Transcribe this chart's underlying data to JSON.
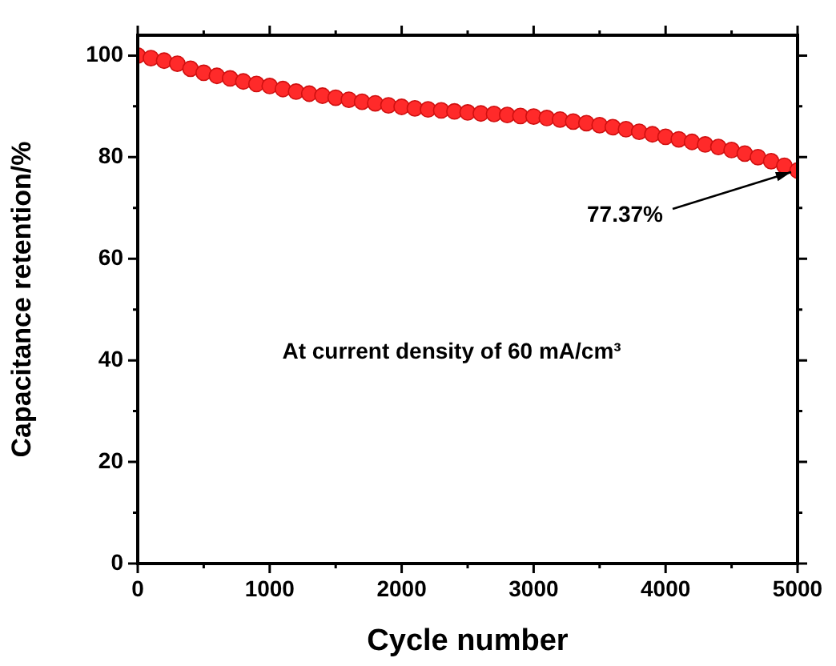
{
  "chart_data": {
    "type": "scatter",
    "xlabel": "Cycle number",
    "ylabel": "Capacitance retention/%",
    "x": [
      0,
      100,
      200,
      300,
      400,
      500,
      600,
      700,
      800,
      900,
      1000,
      1100,
      1200,
      1300,
      1400,
      1500,
      1600,
      1700,
      1800,
      1900,
      2000,
      2100,
      2200,
      2300,
      2400,
      2500,
      2600,
      2700,
      2800,
      2900,
      3000,
      3100,
      3200,
      3300,
      3400,
      3500,
      3600,
      3700,
      3800,
      3900,
      4000,
      4100,
      4200,
      4300,
      4400,
      4500,
      4600,
      4700,
      4800,
      4900,
      5000
    ],
    "series": [
      {
        "color": "#ff2a2a",
        "values": [
          100,
          99.5,
          99.0,
          98.4,
          97.4,
          96.6,
          96.0,
          95.5,
          94.9,
          94.4,
          94.0,
          93.4,
          92.9,
          92.5,
          92.1,
          91.7,
          91.3,
          90.9,
          90.6,
          90.2,
          89.9,
          89.6,
          89.4,
          89.2,
          89.0,
          88.8,
          88.6,
          88.5,
          88.3,
          88.1,
          88.0,
          87.7,
          87.4,
          87.0,
          86.7,
          86.3,
          85.9,
          85.5,
          85.0,
          84.5,
          84.0,
          83.5,
          83.0,
          82.5,
          82.0,
          81.4,
          80.7,
          80.0,
          79.2,
          78.3,
          77.37
        ]
      }
    ],
    "xlim": [
      0,
      5000
    ],
    "xticks": [
      0,
      1000,
      2000,
      3000,
      4000,
      5000
    ],
    "ylim": [
      0,
      104
    ],
    "yticks": [
      0,
      20,
      40,
      60,
      80,
      100
    ],
    "marker": "circle",
    "grid": false,
    "legend": false,
    "annotations": [
      {
        "text": "77.37%",
        "x": 5000,
        "y": 77.37
      },
      "At current density of 60 mA/cm³"
    ]
  }
}
